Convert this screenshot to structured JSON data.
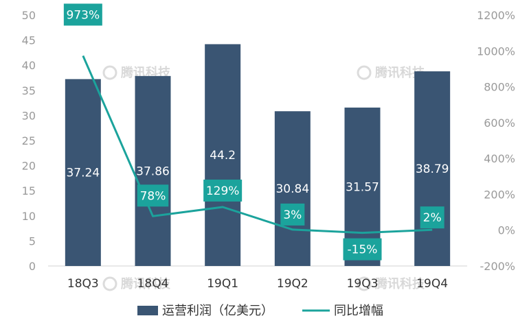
{
  "chart_data": {
    "type": "bar",
    "categories": [
      "18Q3",
      "18Q4",
      "19Q1",
      "19Q2",
      "19Q3",
      "19Q4"
    ],
    "series": [
      {
        "name": "运营利润（亿美元）",
        "type": "bar",
        "axis": "left",
        "color": "#3a5573",
        "values": [
          37.24,
          37.86,
          44.2,
          30.84,
          31.57,
          38.79
        ],
        "labels": [
          "37.24",
          "37.86",
          "44.2",
          "30.84",
          "31.57",
          "38.79"
        ]
      },
      {
        "name": "同比增幅",
        "type": "line",
        "axis": "right",
        "color": "#1ba39c",
        "values": [
          973,
          78,
          129,
          3,
          -15,
          2
        ],
        "labels": [
          "973%",
          "78%",
          "129%",
          "3%",
          "-15%",
          "2%"
        ]
      }
    ],
    "y_left": {
      "min": 0,
      "max": 50,
      "step": 5,
      "ticks": [
        "0",
        "5",
        "10",
        "15",
        "20",
        "25",
        "30",
        "35",
        "40",
        "45",
        "50"
      ]
    },
    "y_right": {
      "min": -200,
      "max": 1200,
      "step": 200,
      "ticks": [
        "-200%",
        "0%",
        "200%",
        "400%",
        "600%",
        "800%",
        "1000%",
        "1200%"
      ]
    },
    "legend": "bottom",
    "grid": false,
    "watermark": "腾讯科技"
  }
}
